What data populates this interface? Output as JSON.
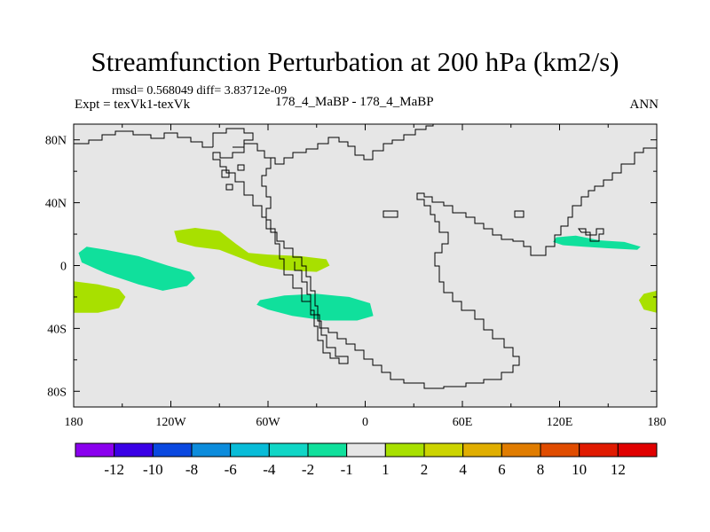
{
  "chart_data": {
    "type": "filled-contour map",
    "title": "Streamfunction Perturbation at 200 hPa (km2/s)",
    "subtitle": "rmsd= 0.568049 diff= 3.83712e-09",
    "left_label": "Expt = texVk1-texVk",
    "center_label": "178_4_MaBP - 178_4_MaBP",
    "right_label": "ANN",
    "x_axis": {
      "range": [
        -180,
        180
      ],
      "ticks": [
        -180,
        -120,
        -60,
        0,
        60,
        120,
        180
      ],
      "tick_labels": [
        "180",
        "120W",
        "60W",
        "0",
        "60E",
        "120E",
        "180"
      ]
    },
    "y_axis": {
      "range": [
        -90,
        90
      ],
      "ticks": [
        80,
        40,
        0,
        -40,
        -80
      ],
      "tick_labels": [
        "80N",
        "40N",
        "0",
        "40S",
        "80S"
      ]
    },
    "colorbar": {
      "levels": [
        "-12",
        "-10",
        "-8",
        "-6",
        "-4",
        "-2",
        "-1",
        "1",
        "2",
        "4",
        "6",
        "8",
        "10",
        "12"
      ],
      "colors": [
        "#8a00ee",
        "#3a00e6",
        "#0a48e0",
        "#0c8cdc",
        "#08bcd8",
        "#10d6c6",
        "#10e09c",
        "#e6e6e6",
        "#a8e000",
        "#ccd400",
        "#e0ae00",
        "#e07c00",
        "#e04c00",
        "#e01a00",
        "#e00000"
      ]
    },
    "features": [
      {
        "name": "feature-1",
        "level": "-2 to -1",
        "color": "#10e09c",
        "points": [
          [
            -177,
            8
          ],
          [
            -172,
            12
          ],
          [
            -160,
            10
          ],
          [
            -140,
            6
          ],
          [
            -122,
            0
          ],
          [
            -108,
            -4
          ],
          [
            -105,
            -8
          ],
          [
            -110,
            -13
          ],
          [
            -125,
            -16
          ],
          [
            -140,
            -12
          ],
          [
            -160,
            -5
          ],
          [
            -175,
            2
          ]
        ]
      },
      {
        "name": "feature-2",
        "level": "1 to 2",
        "color": "#a8e000",
        "points": [
          [
            -180,
            -10
          ],
          [
            -165,
            -12
          ],
          [
            -152,
            -15
          ],
          [
            -148,
            -20
          ],
          [
            -152,
            -27
          ],
          [
            -165,
            -30
          ],
          [
            -180,
            -30
          ]
        ]
      },
      {
        "name": "feature-3",
        "level": "1 to 2",
        "color": "#a8e000",
        "points": [
          [
            -118,
            22
          ],
          [
            -105,
            24
          ],
          [
            -90,
            22
          ],
          [
            -80,
            14
          ],
          [
            -72,
            8
          ],
          [
            -60,
            7
          ],
          [
            -40,
            6
          ],
          [
            -24,
            4
          ],
          [
            -22,
            0
          ],
          [
            -30,
            -4
          ],
          [
            -50,
            -3
          ],
          [
            -65,
            0
          ],
          [
            -75,
            4
          ],
          [
            -90,
            10
          ],
          [
            -105,
            12
          ],
          [
            -116,
            15
          ]
        ]
      },
      {
        "name": "feature-4",
        "level": "-2 to -1",
        "color": "#10e09c",
        "points": [
          [
            -65,
            -22
          ],
          [
            -50,
            -19
          ],
          [
            -30,
            -18
          ],
          [
            -10,
            -20
          ],
          [
            3,
            -24
          ],
          [
            5,
            -32
          ],
          [
            -5,
            -35
          ],
          [
            -25,
            -35
          ],
          [
            -45,
            -32
          ],
          [
            -60,
            -28
          ],
          [
            -67,
            -25
          ]
        ]
      },
      {
        "name": "feature-5",
        "level": "-2 to -1",
        "color": "#10e09c",
        "points": [
          [
            118,
            18
          ],
          [
            130,
            19
          ],
          [
            145,
            16
          ],
          [
            160,
            15
          ],
          [
            170,
            12
          ],
          [
            168,
            10
          ],
          [
            150,
            11
          ],
          [
            135,
            12
          ],
          [
            122,
            13
          ],
          [
            116,
            15
          ]
        ]
      },
      {
        "name": "feature-6",
        "level": "1 to 2",
        "color": "#a8e000",
        "points": [
          [
            180,
            -16
          ],
          [
            172,
            -18
          ],
          [
            169,
            -22
          ],
          [
            172,
            -28
          ],
          [
            180,
            -30
          ]
        ]
      }
    ]
  }
}
